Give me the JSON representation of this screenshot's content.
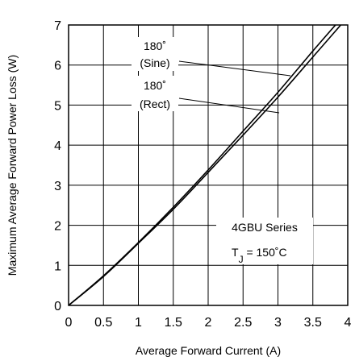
{
  "chart_data": {
    "type": "line",
    "title": "",
    "xlabel": "Average Forward Current (A)",
    "ylabel": "Maximum Average Forward Power Loss (W)",
    "xlim": [
      0,
      4
    ],
    "ylim": [
      0,
      7
    ],
    "x_ticks": [
      "0",
      "0.5",
      "1",
      "1.5",
      "2",
      "2.5",
      "3",
      "3.5",
      "4"
    ],
    "y_ticks": [
      "0",
      "1",
      "2",
      "3",
      "4",
      "5",
      "6",
      "7"
    ],
    "grid": true,
    "series": [
      {
        "name": "180° (Sine)",
        "x": [
          0,
          0.5,
          1,
          1.5,
          2,
          2.5,
          3,
          3.5,
          4
        ],
        "y": [
          0,
          0.72,
          1.55,
          2.4,
          3.32,
          4.25,
          5.2,
          6.2,
          7.2
        ]
      },
      {
        "name": "180° (Rect)",
        "x": [
          0,
          0.5,
          1,
          1.5,
          2,
          2.5,
          3,
          3.5,
          4
        ],
        "y": [
          0,
          0.74,
          1.57,
          2.45,
          3.38,
          4.35,
          5.32,
          6.35,
          7.35
        ]
      }
    ],
    "annotations": {
      "sine_deg": "180˚",
      "sine_label": "(Sine)",
      "rect_deg": "180˚",
      "rect_label": "(Rect)",
      "series_label": "4GBU  Series",
      "tj_prefix": "T",
      "tj_sub": "J",
      "tj_value": " = 150˚C"
    }
  }
}
